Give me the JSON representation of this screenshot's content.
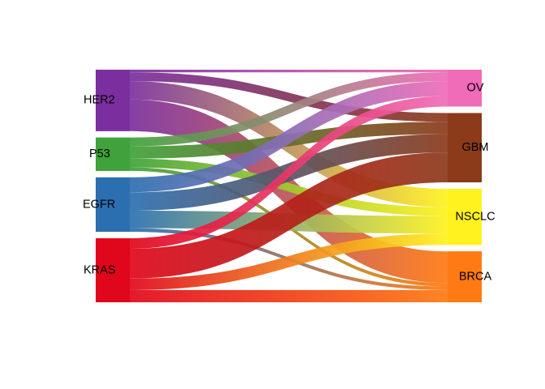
{
  "sources": [
    {
      "id": "HER2",
      "label": "HER2",
      "color": "#7B2F9E"
    },
    {
      "id": "P53",
      "label": "P53",
      "color": "#3FA23A"
    },
    {
      "id": "EGFR",
      "label": "EGFR",
      "color": "#2B6FB0"
    },
    {
      "id": "KRAS",
      "label": "KRAS",
      "color": "#E0061B"
    }
  ],
  "targets": [
    {
      "id": "OV",
      "label": "OV",
      "color": "#F06BB8"
    },
    {
      "id": "GBM",
      "label": "GBM",
      "color": "#8B3A1A"
    },
    {
      "id": "NSCLC",
      "label": "NSCLC",
      "color": "#FFF21E"
    },
    {
      "id": "BRCA",
      "label": "BRCA",
      "color": "#FF7A12"
    }
  ],
  "flows": [
    {
      "source": "HER2",
      "target": "OV",
      "value": 3
    },
    {
      "source": "HER2",
      "target": "GBM",
      "value": 10
    },
    {
      "source": "HER2",
      "target": "NSCLC",
      "value": 21
    },
    {
      "source": "HER2",
      "target": "BRCA",
      "value": 36
    },
    {
      "source": "P53",
      "target": "OV",
      "value": 10
    },
    {
      "source": "P53",
      "target": "GBM",
      "value": 14
    },
    {
      "source": "P53",
      "target": "NSCLC",
      "value": 10
    },
    {
      "source": "P53",
      "target": "BRCA",
      "value": 4
    },
    {
      "source": "EGFR",
      "target": "OV",
      "value": 17
    },
    {
      "source": "EGFR",
      "target": "GBM",
      "value": 21
    },
    {
      "source": "EGFR",
      "target": "NSCLC",
      "value": 20
    },
    {
      "source": "EGFR",
      "target": "BRCA",
      "value": 4
    },
    {
      "source": "KRAS",
      "target": "OV",
      "value": 12
    },
    {
      "source": "KRAS",
      "target": "GBM",
      "value": 34
    },
    {
      "source": "KRAS",
      "target": "NSCLC",
      "value": 13
    },
    {
      "source": "KRAS",
      "target": "BRCA",
      "value": 14
    }
  ]
}
